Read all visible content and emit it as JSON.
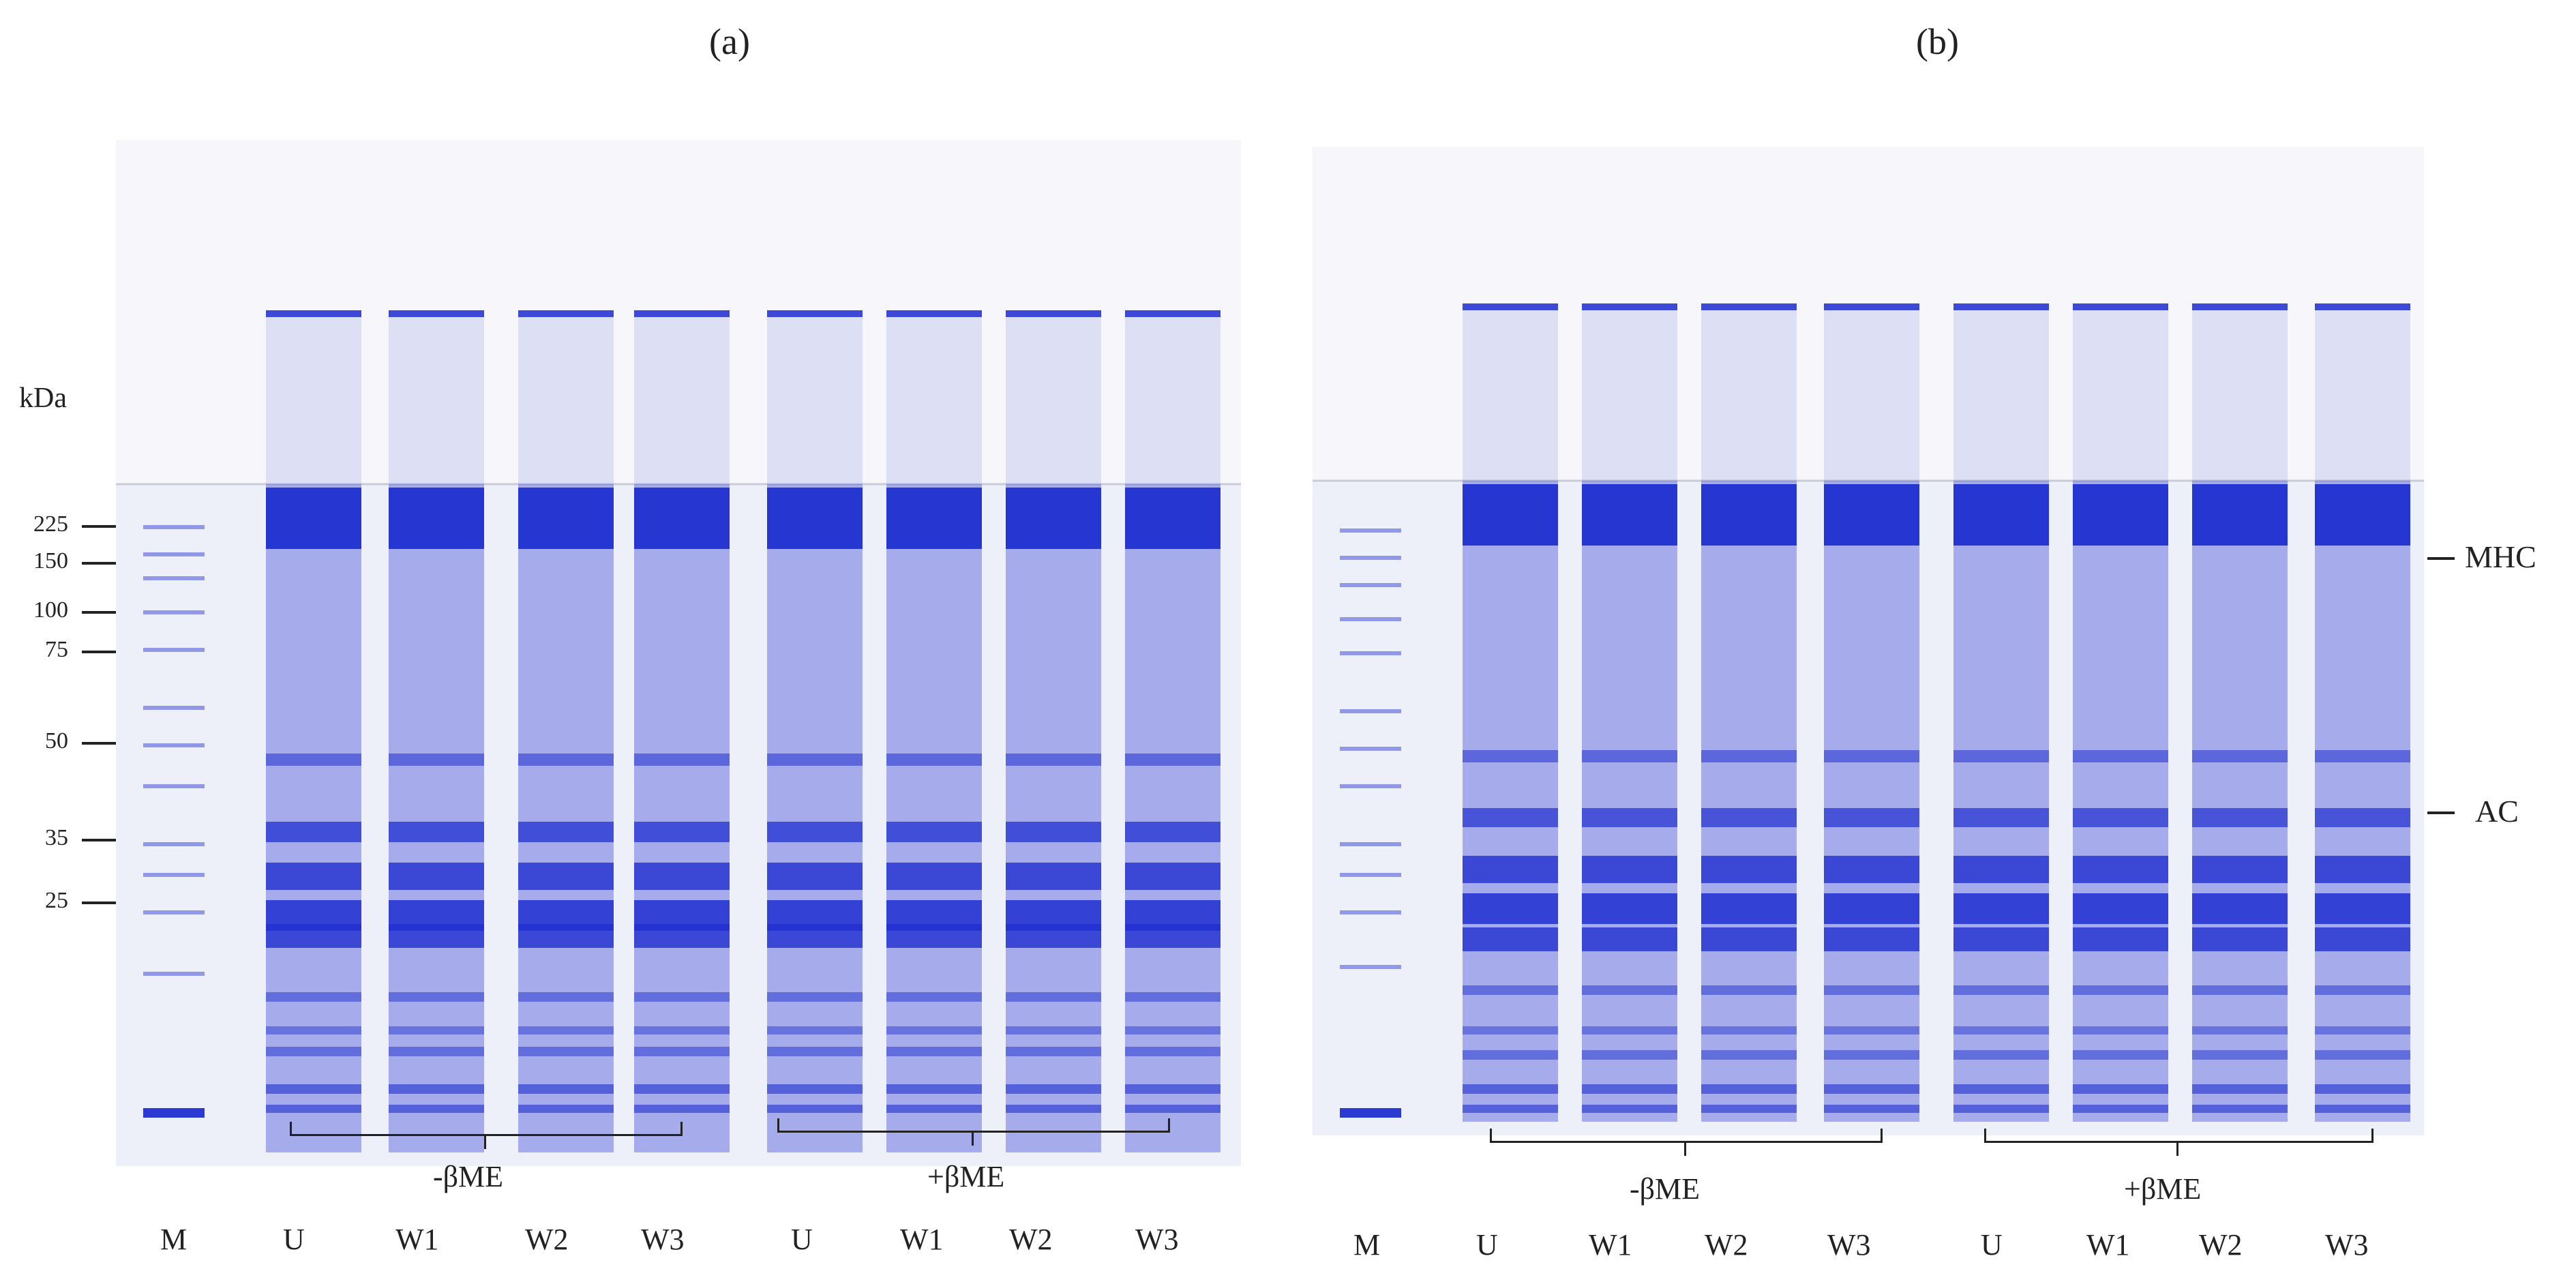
{
  "panels": [
    {
      "label": "(a)",
      "lanes": [
        "M",
        "U",
        "W1",
        "W2",
        "W3",
        "U",
        "W1",
        "W2",
        "W3"
      ],
      "conditions": [
        "-βME",
        "+βME"
      ]
    },
    {
      "label": "(b)",
      "lanes": [
        "M",
        "U",
        "W1",
        "W2",
        "W3",
        "U",
        "W1",
        "W2",
        "W3"
      ],
      "conditions": [
        "-βME",
        "+βME"
      ]
    }
  ],
  "markers": {
    "unit": "kDa",
    "values": [
      "225",
      "150",
      "100",
      "75",
      "50",
      "35",
      "25"
    ]
  },
  "band_labels": [
    "MHC",
    "AC"
  ],
  "colors": {
    "stain": "#1f2fd0",
    "gel_background": "#eef0f9",
    "text": "#222222"
  }
}
